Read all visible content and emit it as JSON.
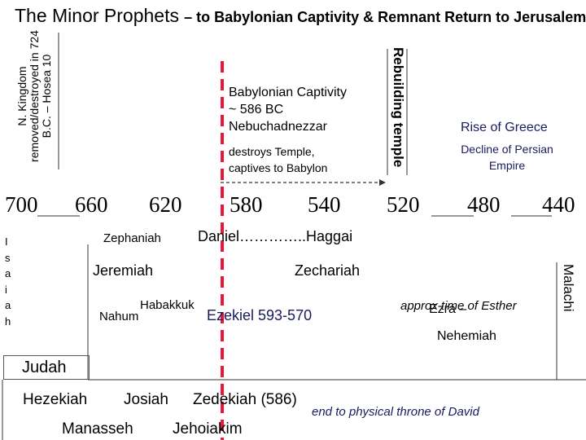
{
  "title": {
    "main": "The Minor Prophets",
    "sub": "– to Babylonian Captivity & Remnant Return to Jerusalem"
  },
  "north": "N. Kingdom removed/destroyed in 724 B.C. – Hosea 10",
  "rebuilding": "Rebuilding temple",
  "captivity": {
    "line1": "Babylonian Captivity",
    "line2": "~ 586 BC",
    "line3": "Nebuchadnezzar",
    "line4": "destroys Temple,",
    "line5": "captives to Babylon"
  },
  "greece": "Rise of Greece",
  "persian": "Decline of Persian Empire",
  "years": [
    "700",
    "660",
    "620",
    "580",
    "540",
    "520",
    "480",
    "440"
  ],
  "isaiah_letters": [
    "I",
    "s",
    "a",
    "i",
    "a",
    "h"
  ],
  "prophets": {
    "zephaniah": "Zephaniah",
    "daniel_haggai": "Daniel…………..Haggai",
    "jeremiah": "Jeremiah",
    "zechariah": "Zechariah",
    "habakkuk": "Habakkuk",
    "nahum": "Nahum",
    "ezekiel": "Ezekiel 593-570",
    "esther": "approx time of Esther",
    "ezra": "Ezra –",
    "nehemiah": "Nehemiah",
    "malachi": "Malachi"
  },
  "judah": "Judah",
  "kings": {
    "hezekiah": "Hezekiah",
    "josiah": "Josiah",
    "zedekiah": "Zedekiah (586)",
    "manasseh": "Manasseh",
    "jehoiakim": "Jehoiakim"
  },
  "throne_end": "end to physical throne of David",
  "colors": {
    "divider_red": "#e8183a",
    "accent_blue": "#1a1a5e"
  }
}
